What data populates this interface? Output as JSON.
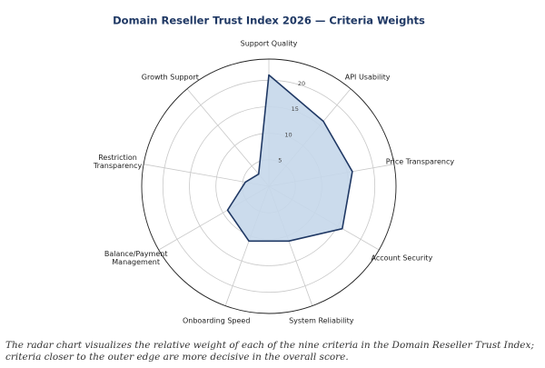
{
  "chart_data": {
    "type": "radar",
    "title": "Domain Reseller Trust Index 2026 — Criteria Weights",
    "categories": [
      "Support Quality",
      "API Usability",
      "Price Transparency",
      "Account Security",
      "System Reliability",
      "Onboarding Speed",
      "Balance/Payment Management",
      "Restriction Transparency",
      "Growth Support"
    ],
    "values": [
      21,
      16,
      16,
      16,
      11,
      11,
      9,
      4.5,
      3
    ],
    "color": "#1f3864",
    "fill": "#c5d7ea",
    "ylim": [
      0,
      24
    ],
    "yticks": [
      5,
      10,
      15,
      20
    ],
    "grid": true,
    "caption": "The radar chart visualizes the relative weight of each of the nine criteria in the Domain Reseller Trust Index; criteria closer to the outer edge are more decisive in the overall score."
  }
}
